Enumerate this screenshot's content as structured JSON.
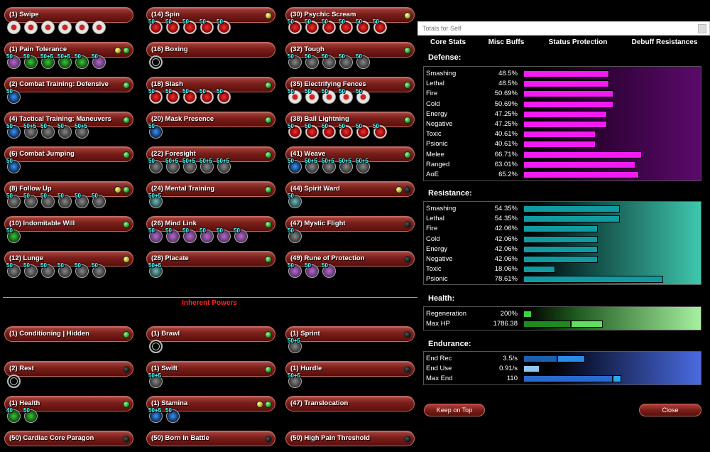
{
  "colors": {
    "defense_bar": "#f21cf2",
    "resistance_bar": "#119aa0",
    "hp_bar": "#5ee05e",
    "end_bar": "#2a7de0",
    "heading_red": "#ff2222"
  },
  "powers": [
    [
      {
        "label": "(1) Swipe",
        "leds": [],
        "slots": [
          {
            "c": "white",
            "l": ""
          },
          {
            "c": "white",
            "l": ""
          },
          {
            "c": "white",
            "l": ""
          },
          {
            "c": "white",
            "l": ""
          },
          {
            "c": "white",
            "l": ""
          },
          {
            "c": "white",
            "l": ""
          }
        ]
      },
      {
        "label": "(1) Pain Tolerance",
        "leds": [
          "yellow",
          "green"
        ],
        "slots": [
          {
            "c": "purple",
            "l": "50"
          },
          {
            "c": "green",
            "l": "50"
          },
          {
            "c": "green",
            "l": "50+5"
          },
          {
            "c": "green",
            "l": "50+5"
          },
          {
            "c": "green",
            "l": "50"
          },
          {
            "c": "purple",
            "l": "50"
          }
        ]
      },
      {
        "label": "(2) Combat Training: Defensive",
        "leds": [
          "green"
        ],
        "slots": [
          {
            "c": "blue",
            "l": "50"
          }
        ]
      },
      {
        "label": "(4) Tactical Training: Maneuvers",
        "leds": [
          "green"
        ],
        "slots": [
          {
            "c": "blue",
            "l": "50"
          },
          {
            "c": "grey",
            "l": "50+5"
          },
          {
            "c": "grey",
            "l": "50"
          },
          {
            "c": "grey",
            "l": "50"
          },
          {
            "c": "grey",
            "l": "50+5"
          }
        ]
      },
      {
        "label": "(6) Combat Jumping",
        "leds": [
          "green"
        ],
        "slots": [
          {
            "c": "blue",
            "l": "50"
          }
        ]
      },
      {
        "label": "(8) Follow Up",
        "leds": [
          "yellow",
          "green"
        ],
        "slots": [
          {
            "c": "grey",
            "l": "50"
          },
          {
            "c": "grey",
            "l": "50"
          },
          {
            "c": "grey",
            "l": "50"
          },
          {
            "c": "grey",
            "l": "50"
          },
          {
            "c": "grey",
            "l": "50"
          },
          {
            "c": "grey",
            "l": "50"
          }
        ]
      },
      {
        "label": "(10) Indomitable Will",
        "leds": [
          "green"
        ],
        "slots": [
          {
            "c": "green",
            "l": "50"
          }
        ]
      },
      {
        "label": "(12) Lunge",
        "leds": [
          "yellow"
        ],
        "slots": [
          {
            "c": "grey",
            "l": "50"
          },
          {
            "c": "grey",
            "l": "50"
          },
          {
            "c": "grey",
            "l": "50"
          },
          {
            "c": "grey",
            "l": "50"
          },
          {
            "c": "grey",
            "l": "50"
          },
          {
            "c": "grey",
            "l": "50"
          }
        ]
      }
    ],
    [
      {
        "label": "(14) Spin",
        "leds": [
          "yellow"
        ],
        "slots": [
          {
            "c": "red",
            "l": "50"
          },
          {
            "c": "red",
            "l": "50"
          },
          {
            "c": "red",
            "l": "50"
          },
          {
            "c": "red",
            "l": "50"
          },
          {
            "c": "red",
            "l": "50"
          }
        ]
      },
      {
        "label": "(16) Boxing",
        "leds": [],
        "slots": [
          {
            "c": "empty",
            "l": ""
          }
        ]
      },
      {
        "label": "(18) Slash",
        "leds": [
          "green"
        ],
        "slots": [
          {
            "c": "red",
            "l": "50"
          },
          {
            "c": "red",
            "l": "50"
          },
          {
            "c": "red",
            "l": "50"
          },
          {
            "c": "red",
            "l": "50"
          },
          {
            "c": "red",
            "l": "50"
          }
        ]
      },
      {
        "label": "(20) Mask Presence",
        "leds": [
          "green"
        ],
        "slots": [
          {
            "c": "blue",
            "l": "50"
          }
        ]
      },
      {
        "label": "(22) Foresight",
        "leds": [
          "green"
        ],
        "slots": [
          {
            "c": "grey",
            "l": "50"
          },
          {
            "c": "grey",
            "l": "50+5"
          },
          {
            "c": "grey",
            "l": "50+5"
          },
          {
            "c": "grey",
            "l": "50+5"
          },
          {
            "c": "grey",
            "l": "50+5"
          }
        ]
      },
      {
        "label": "(24) Mental Training",
        "leds": [
          "green"
        ],
        "slots": [
          {
            "c": "teal",
            "l": "50+5"
          }
        ]
      },
      {
        "label": "(26) Mind Link",
        "leds": [
          "green"
        ],
        "slots": [
          {
            "c": "purple",
            "l": "50"
          },
          {
            "c": "purple",
            "l": "50"
          },
          {
            "c": "purple",
            "l": "50"
          },
          {
            "c": "purple",
            "l": "50"
          },
          {
            "c": "purple",
            "l": "50"
          },
          {
            "c": "purple",
            "l": "50"
          }
        ]
      },
      {
        "label": "(28) Placate",
        "leds": [
          "green"
        ],
        "slots": [
          {
            "c": "teal",
            "l": "50+5"
          }
        ]
      }
    ],
    [
      {
        "label": "(30) Psychic Scream",
        "leds": [
          "yellow"
        ],
        "slots": [
          {
            "c": "red",
            "l": "50"
          },
          {
            "c": "red",
            "l": "50"
          },
          {
            "c": "red",
            "l": "50"
          },
          {
            "c": "red",
            "l": "50"
          },
          {
            "c": "red",
            "l": "50"
          },
          {
            "c": "red",
            "l": "50"
          }
        ]
      },
      {
        "label": "(32) Tough",
        "leds": [
          "green"
        ],
        "slots": [
          {
            "c": "grey",
            "l": "50"
          },
          {
            "c": "grey",
            "l": "50"
          },
          {
            "c": "grey",
            "l": "50"
          },
          {
            "c": "grey",
            "l": "50"
          },
          {
            "c": "grey",
            "l": "50"
          }
        ]
      },
      {
        "label": "(35) Electrifying Fences",
        "leds": [
          "green"
        ],
        "slots": [
          {
            "c": "white",
            "l": "50"
          },
          {
            "c": "white",
            "l": "50"
          },
          {
            "c": "white",
            "l": "50"
          },
          {
            "c": "white",
            "l": "50"
          },
          {
            "c": "white",
            "l": "50"
          }
        ]
      },
      {
        "label": "(38) Ball Lightning",
        "leds": [
          "green"
        ],
        "slots": [
          {
            "c": "red",
            "l": "50"
          },
          {
            "c": "red",
            "l": "50"
          },
          {
            "c": "red",
            "l": "50"
          },
          {
            "c": "red",
            "l": "50"
          },
          {
            "c": "red",
            "l": "50"
          },
          {
            "c": "red",
            "l": "50"
          }
        ]
      },
      {
        "label": "(41) Weave",
        "leds": [
          "green"
        ],
        "slots": [
          {
            "c": "blue",
            "l": "50"
          },
          {
            "c": "grey",
            "l": "50+5"
          },
          {
            "c": "grey",
            "l": "50+5"
          },
          {
            "c": "grey",
            "l": "50+5"
          },
          {
            "c": "grey",
            "l": "50+5"
          }
        ]
      },
      {
        "label": "(44) Spirit Ward",
        "leds": [
          "yellow",
          "dark"
        ],
        "slots": [
          {
            "c": "teal",
            "l": "50"
          }
        ]
      },
      {
        "label": "(47) Mystic Flight",
        "leds": [
          "dark"
        ],
        "slots": [
          {
            "c": "grey",
            "l": "50"
          }
        ]
      },
      {
        "label": "(49) Rune of Protection",
        "leds": [
          "dark"
        ],
        "slots": [
          {
            "c": "purple",
            "l": "50"
          },
          {
            "c": "purple",
            "l": "50"
          },
          {
            "c": "purple",
            "l": "50"
          }
        ]
      }
    ]
  ],
  "inherent_title": "Inherent Powers",
  "inherent": [
    [
      {
        "label": "(1) Conditioning | Hidden",
        "leds": [
          "green"
        ],
        "slots": []
      },
      {
        "label": "(2) Rest",
        "leds": [
          "dark"
        ],
        "slots": [
          {
            "c": "empty",
            "l": ""
          }
        ]
      },
      {
        "label": "(1) Health",
        "leds": [
          "green"
        ],
        "slots": [
          {
            "c": "green",
            "l": "40"
          },
          {
            "c": "green",
            "l": "50"
          }
        ]
      },
      {
        "label": "(50) Cardiac Core Paragon",
        "leds": [
          "dark"
        ],
        "slots": []
      }
    ],
    [
      {
        "label": "(1) Brawl",
        "leds": [
          "green"
        ],
        "slots": [
          {
            "c": "empty",
            "l": ""
          }
        ]
      },
      {
        "label": "(1) Swift",
        "leds": [
          "green"
        ],
        "slots": [
          {
            "c": "grey",
            "l": "50+5"
          }
        ]
      },
      {
        "label": "(1) Stamina",
        "leds": [
          "yellow",
          "green"
        ],
        "slots": [
          {
            "c": "blue",
            "l": "50+5"
          },
          {
            "c": "blue",
            "l": "50"
          }
        ]
      },
      {
        "label": "(50) Born In Battle",
        "leds": [
          "dark"
        ],
        "slots": []
      }
    ],
    [
      {
        "label": "(1) Sprint",
        "leds": [
          "dark"
        ],
        "slots": [
          {
            "c": "grey",
            "l": "50+5"
          }
        ]
      },
      {
        "label": "(1) Hurdle",
        "leds": [
          "dark"
        ],
        "slots": [
          {
            "c": "grey",
            "l": "50+5"
          }
        ]
      },
      {
        "label": "(47) Translocation",
        "leds": [],
        "slots": []
      },
      {
        "label": "(50) High Pain Threshold",
        "leds": [
          "dark"
        ],
        "slots": []
      }
    ]
  ],
  "totals": {
    "title": "Totals for Self",
    "tabs": [
      "Core Stats",
      "Misc Buffs",
      "Status Protection",
      "Debuff Resistances"
    ],
    "active_tab": 0,
    "defense_title": "Defense:",
    "defense": [
      {
        "name": "Smashing",
        "value": "48.5%",
        "pct": 48.5
      },
      {
        "name": "Lethal",
        "value": "48.5%",
        "pct": 48.5
      },
      {
        "name": "Fire",
        "value": "50.69%",
        "pct": 50.69
      },
      {
        "name": "Cold",
        "value": "50.69%",
        "pct": 50.69
      },
      {
        "name": "Energy",
        "value": "47.25%",
        "pct": 47.25
      },
      {
        "name": "Negative",
        "value": "47.25%",
        "pct": 47.25
      },
      {
        "name": "Toxic",
        "value": "40.61%",
        "pct": 40.61
      },
      {
        "name": "Psionic",
        "value": "40.61%",
        "pct": 40.61
      },
      {
        "name": "Melee",
        "value": "66.71%",
        "pct": 66.71
      },
      {
        "name": "Ranged",
        "value": "63.01%",
        "pct": 63.01
      },
      {
        "name": "AoE",
        "value": "65.2%",
        "pct": 65.2
      }
    ],
    "resistance_title": "Resistance:",
    "resistance": [
      {
        "name": "Smashing",
        "value": "54.35%",
        "pct": 54.35
      },
      {
        "name": "Lethal",
        "value": "54.35%",
        "pct": 54.35
      },
      {
        "name": "Fire",
        "value": "42.06%",
        "pct": 42.06
      },
      {
        "name": "Cold",
        "value": "42.06%",
        "pct": 42.06
      },
      {
        "name": "Energy",
        "value": "42.06%",
        "pct": 42.06
      },
      {
        "name": "Negative",
        "value": "42.06%",
        "pct": 42.06
      },
      {
        "name": "Toxic",
        "value": "18.06%",
        "pct": 18.06
      },
      {
        "name": "Psionic",
        "value": "78.61%",
        "pct": 78.61
      }
    ],
    "health_title": "Health:",
    "health": [
      {
        "name": "Regeneration",
        "value": "200%"
      },
      {
        "name": "Max HP",
        "value": "1786.38"
      }
    ],
    "endurance_title": "Endurance:",
    "endurance": [
      {
        "name": "End Rec",
        "value": "3.5/s"
      },
      {
        "name": "End Use",
        "value": "0.91/s"
      },
      {
        "name": "Max End",
        "value": "110"
      }
    ],
    "keep_on_top": "Keep on Top",
    "close": "Close"
  }
}
